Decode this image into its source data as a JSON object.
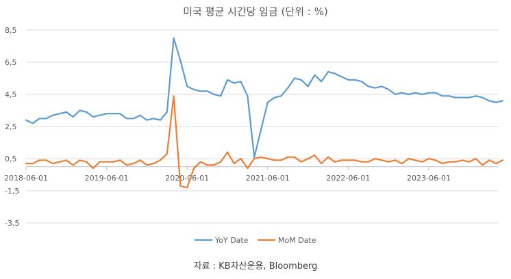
{
  "chart_data": {
    "type": "line",
    "title": "미국 평균 시간당 임금 (단위 : %)",
    "xlabel": "",
    "ylabel": "",
    "ylim": [
      -3.5,
      8.5
    ],
    "yticks": [
      "8,5",
      "6,5",
      "4,5",
      "2,5",
      "0,5",
      "-1,5",
      "-3,5"
    ],
    "ytick_values": [
      8.5,
      6.5,
      4.5,
      2.5,
      0.5,
      -1.5,
      -3.5
    ],
    "xtick_labels": [
      "2018-06-01",
      "2019-06-01",
      "2020-06-01",
      "2021-06-01",
      "2022-06-01",
      "2023-06-01"
    ],
    "xtick_indices": [
      0,
      12,
      24,
      36,
      48,
      60
    ],
    "x_start": "2018-06-01",
    "x_frequency": "monthly",
    "grid": true,
    "legend_position": "bottom",
    "series": [
      {
        "name": "YoY Date",
        "color": "#5b9bd5",
        "values": [
          2.9,
          2.7,
          3.0,
          3.0,
          3.2,
          3.3,
          3.4,
          3.1,
          3.5,
          3.4,
          3.1,
          3.2,
          3.3,
          3.3,
          3.3,
          3.0,
          3.0,
          3.2,
          2.9,
          3.0,
          2.9,
          3.4,
          8.0,
          6.6,
          5.0,
          4.8,
          4.7,
          4.7,
          4.5,
          4.4,
          5.4,
          5.2,
          5.3,
          4.4,
          0.6,
          2.3,
          4.0,
          4.3,
          4.4,
          4.9,
          5.5,
          5.4,
          5.0,
          5.7,
          5.3,
          5.9,
          5.8,
          5.6,
          5.4,
          5.4,
          5.3,
          5.0,
          4.9,
          5.0,
          4.8,
          4.5,
          4.6,
          4.5,
          4.6,
          4.5,
          4.6,
          4.6,
          4.4,
          4.4,
          4.3,
          4.3,
          4.3,
          4.4,
          4.3,
          4.1,
          4.0,
          4.1
        ]
      },
      {
        "name": "MoM Date",
        "color": "#ed7d31",
        "values": [
          0.2,
          0.2,
          0.4,
          0.4,
          0.2,
          0.3,
          0.4,
          0.1,
          0.4,
          0.3,
          -0.1,
          0.3,
          0.3,
          0.3,
          0.4,
          0.1,
          0.2,
          0.4,
          0.1,
          0.2,
          0.4,
          0.8,
          4.4,
          -1.2,
          -1.3,
          -0.1,
          0.3,
          0.1,
          0.1,
          0.3,
          0.9,
          0.2,
          0.5,
          -0.1,
          0.5,
          0.6,
          0.5,
          0.4,
          0.4,
          0.6,
          0.6,
          0.3,
          0.5,
          0.7,
          0.2,
          0.6,
          0.3,
          0.4,
          0.4,
          0.4,
          0.3,
          0.3,
          0.5,
          0.4,
          0.3,
          0.4,
          0.2,
          0.5,
          0.4,
          0.3,
          0.5,
          0.4,
          0.2,
          0.3,
          0.3,
          0.4,
          0.3,
          0.5,
          0.1,
          0.4,
          0.2,
          0.4
        ]
      }
    ]
  },
  "source_text": "자료 : KB자산운용, Bloomberg"
}
